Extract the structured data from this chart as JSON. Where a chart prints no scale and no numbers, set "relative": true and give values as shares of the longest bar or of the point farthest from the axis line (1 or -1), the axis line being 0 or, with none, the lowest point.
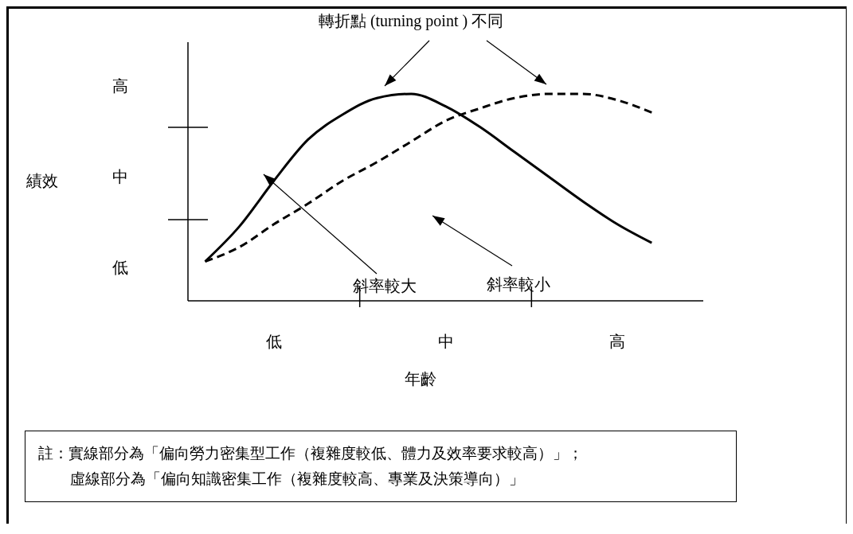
{
  "chart_data": {
    "type": "line",
    "relative": true,
    "xlabel": "年齡",
    "categories": [
      null,
      null,
      "低",
      null,
      null,
      null,
      null,
      "中",
      null,
      null,
      null,
      null,
      "高",
      null,
      null
    ],
    "series": [
      {
        "color": "#000000",
        "line_style": "solid",
        "values": [
          0.19,
          0.36,
          0.58,
          0.78,
          0.9,
          0.98,
          1.0,
          0.94,
          0.84,
          0.72,
          0.6,
          0.48,
          0.37,
          0.28,
          null
        ]
      },
      {
        "color": "#000000",
        "line_style": "dashed",
        "values": [
          0.19,
          0.26,
          0.37,
          0.47,
          0.58,
          0.67,
          0.77,
          0.87,
          0.93,
          0.98,
          1.0,
          1.0,
          0.97,
          0.91,
          null
        ]
      }
    ],
    "grid": false,
    "legend": false,
    "marker": "none",
    "annotations": [
      "轉折點 (turning point ) 不同",
      "高",
      "中",
      "低",
      "斜率較大",
      "斜率較小",
      "績效",
      "註：實線部分為「偏向勞力密集型工作（複雜度較低、體力及效率要求較高）」；",
      "虛線部分為「偏向知識密集工作（複雜度較高、專業及決策導向）」"
    ]
  }
}
